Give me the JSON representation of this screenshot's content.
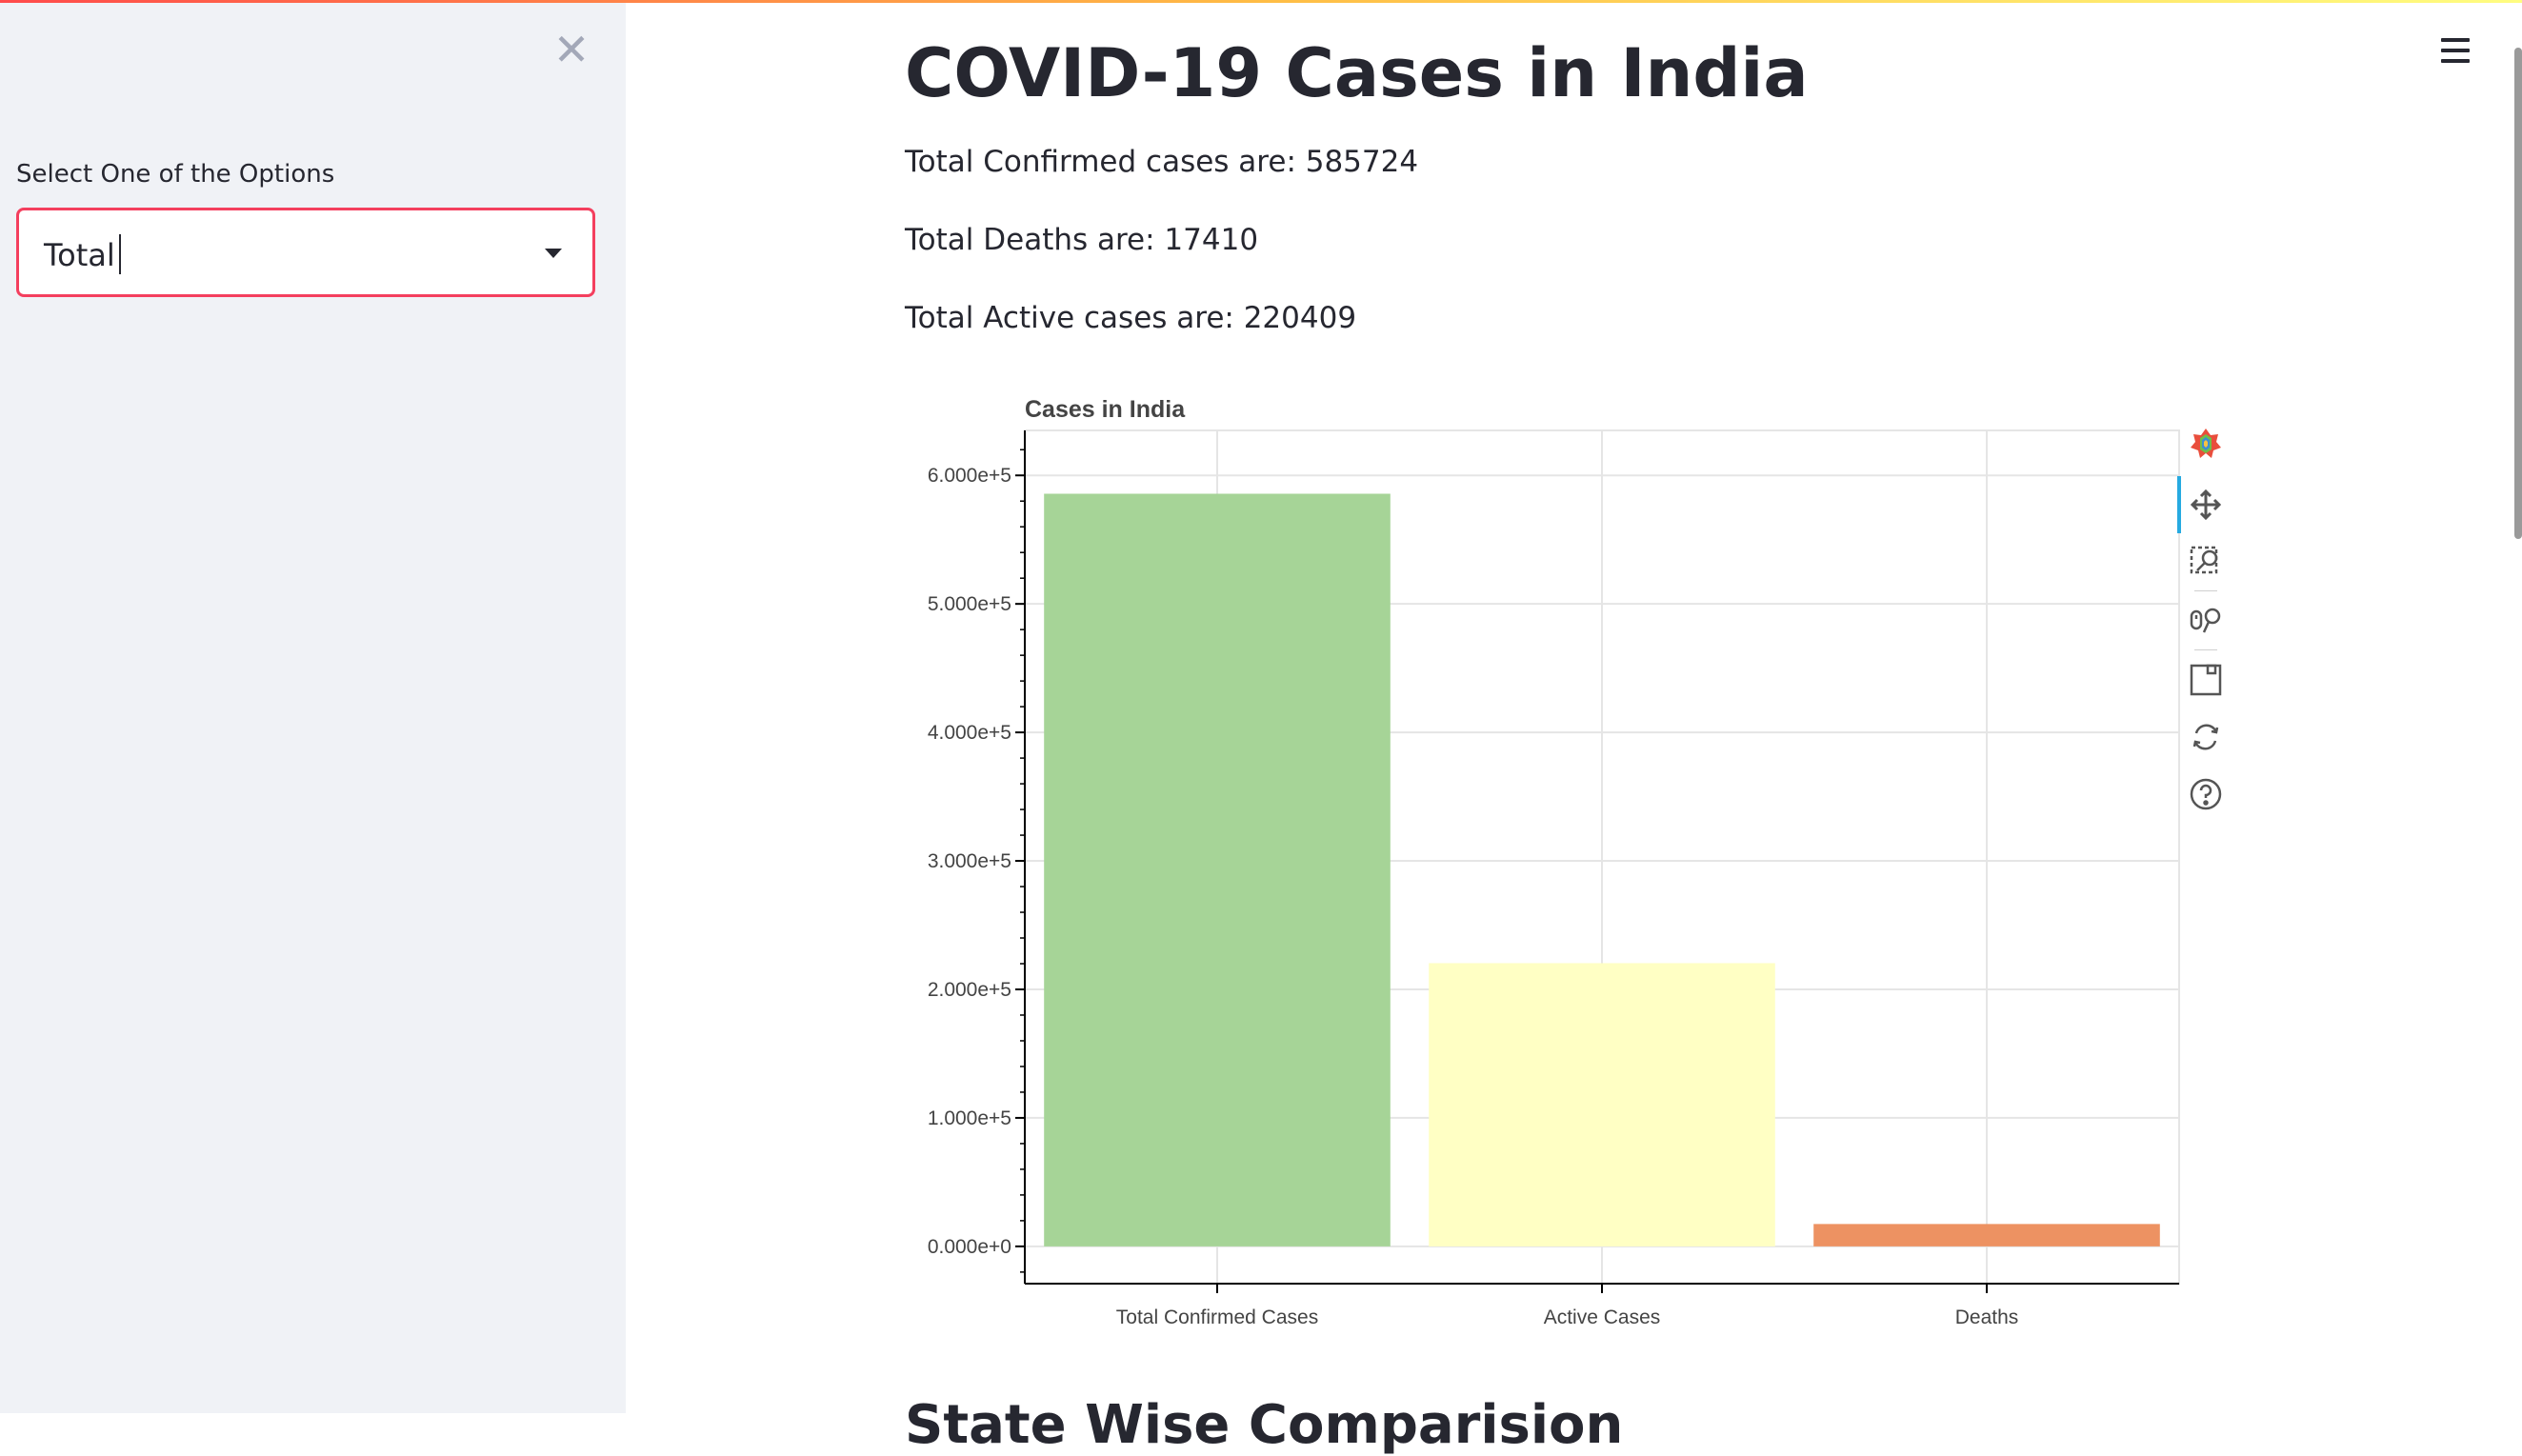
{
  "sidebar": {
    "close_icon": "close-icon",
    "select_label": "Select One of the Options",
    "select_value": "Total"
  },
  "main": {
    "title": "COVID-19 Cases in India",
    "stats": [
      "Total Confirmed cases are: 585724",
      "Total Deaths are: 17410",
      "Total Active cases are: 220409"
    ],
    "next_heading": "State Wise Comparision"
  },
  "toolbar": {
    "tools": [
      "bokeh-logo-icon",
      "pan-icon",
      "box-zoom-icon",
      "wheel-zoom-icon",
      "save-icon",
      "reset-icon",
      "help-icon"
    ]
  },
  "colors": {
    "accent": "#f43f5e",
    "bar_confirmed": "#a6d497",
    "bar_active": "#ffffc4",
    "bar_deaths": "#ed9262"
  },
  "chart_data": {
    "type": "bar",
    "title": "Cases in India",
    "categories": [
      "Total Confirmed Cases",
      "Active Cases",
      "Deaths"
    ],
    "values": [
      585724,
      220409,
      17410
    ],
    "colors": [
      "#a6d497",
      "#ffffc4",
      "#ed9262"
    ],
    "ylim": [
      -29000,
      635000
    ],
    "yticks": [
      0,
      100000,
      200000,
      300000,
      400000,
      500000,
      600000
    ],
    "ytick_labels": [
      "0.000e+0",
      "1.000e+5",
      "2.000e+5",
      "3.000e+5",
      "4.000e+5",
      "5.000e+5",
      "6.000e+5"
    ],
    "grid": true
  }
}
